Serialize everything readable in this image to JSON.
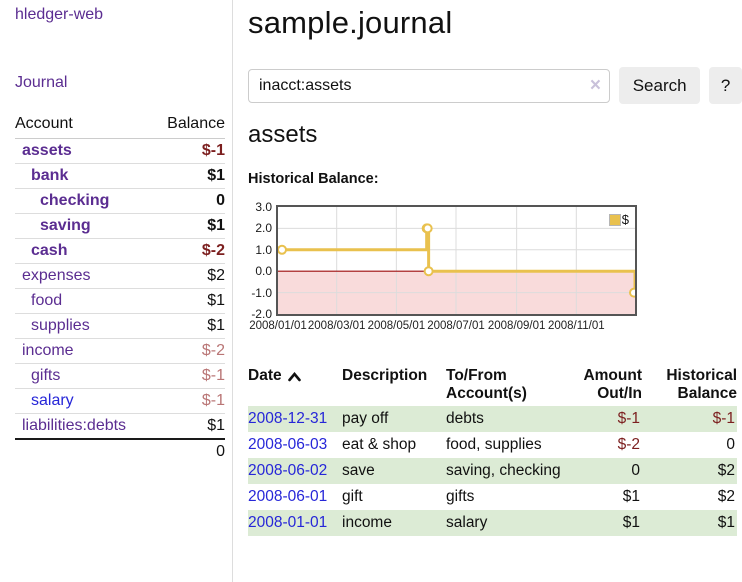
{
  "sidebar": {
    "brand": "hledger-web",
    "nav": {
      "journal": "Journal"
    },
    "accounts_table": {
      "col_account": "Account",
      "col_balance": "Balance",
      "rows": [
        {
          "name": "assets",
          "balance": "$-1"
        },
        {
          "name": "bank",
          "balance": "$1"
        },
        {
          "name": "checking",
          "balance": "0"
        },
        {
          "name": "saving",
          "balance": "$1"
        },
        {
          "name": "cash",
          "balance": "$-2"
        },
        {
          "name": "expenses",
          "balance": "$2"
        },
        {
          "name": "food",
          "balance": "$1"
        },
        {
          "name": "supplies",
          "balance": "$1"
        },
        {
          "name": "income",
          "balance": "$-2"
        },
        {
          "name": "gifts",
          "balance": "$-1"
        },
        {
          "name": "salary",
          "balance": "$-1"
        },
        {
          "name": "liabilities:debts",
          "balance": "$1"
        }
      ],
      "total": "0"
    }
  },
  "main": {
    "title": "sample.journal",
    "search": {
      "value": "inacct:assets",
      "clear_icon": "×",
      "button_label": "Search",
      "help_label": "?"
    },
    "account_heading": "assets",
    "chart_label": "Historical Balance:"
  },
  "chart_data": {
    "type": "line",
    "subtype": "step-after",
    "title": "Historical Balance",
    "legend": [
      "$"
    ],
    "legend_position": "top-right",
    "grid": true,
    "ylim": [
      -2,
      3
    ],
    "y_ticks": [
      3.0,
      2.0,
      1.0,
      0.0,
      -1.0,
      -2.0
    ],
    "x_range": [
      "2008-01-01",
      "2008-12-31"
    ],
    "x_ticks": [
      {
        "date": "2008-01-01",
        "label": "2008/01/01"
      },
      {
        "date": "2008-03-01",
        "label": "2008/03/01"
      },
      {
        "date": "2008-05-01",
        "label": "2008/05/01"
      },
      {
        "date": "2008-07-01",
        "label": "2008/07/01"
      },
      {
        "date": "2008-09-01",
        "label": "2008/09/01"
      },
      {
        "date": "2008-11-01",
        "label": "2008/11/01"
      }
    ],
    "series": [
      {
        "name": "$",
        "points": [
          [
            "2008-01-01",
            1
          ],
          [
            "2008-06-01",
            2
          ],
          [
            "2008-06-02",
            2
          ],
          [
            "2008-06-03",
            0
          ],
          [
            "2008-12-31",
            -1
          ]
        ]
      }
    ],
    "colors": {
      "series": "#e9c14e",
      "marker_fill": "#ffffff",
      "negative_region": "#f9dbdb",
      "zero_line": "#9e0c0c",
      "grid": "#dcdcdc",
      "border": "#555555"
    }
  },
  "register": {
    "headers": {
      "date": "Date",
      "description": "Description",
      "tofrom": "To/From Account(s)",
      "amount": "Amount Out/In",
      "historical": "Historical Balance"
    },
    "rows": [
      {
        "date": "2008-12-31",
        "description": "pay off",
        "accounts": "debts",
        "amount": "$-1",
        "historical": "$-1"
      },
      {
        "date": "2008-06-03",
        "description": "eat & shop",
        "accounts": "food, supplies",
        "amount": "$-2",
        "historical": "0"
      },
      {
        "date": "2008-06-02",
        "description": "save",
        "accounts": "saving, checking",
        "amount": "0",
        "historical": "$2"
      },
      {
        "date": "2008-06-01",
        "description": "gift",
        "accounts": "gifts",
        "amount": "$1",
        "historical": "$2"
      },
      {
        "date": "2008-01-01",
        "description": "income",
        "accounts": "salary",
        "amount": "$1",
        "historical": "$1"
      }
    ]
  }
}
